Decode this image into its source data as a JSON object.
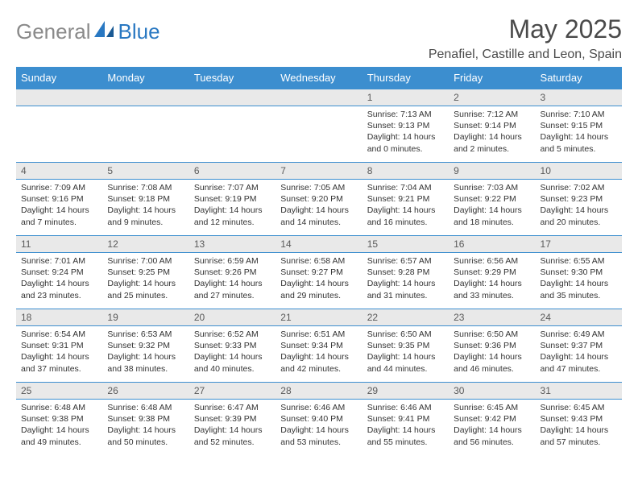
{
  "brand": {
    "part1": "General",
    "part2": "Blue"
  },
  "title": "May 2025",
  "location": "Penafiel, Castille and Leon, Spain",
  "colors": {
    "header_bg": "#3c8ecf",
    "header_text": "#ffffff",
    "daynum_bg": "#e9e9e9",
    "border": "#3c8ecf",
    "logo_gray": "#8a8a8a",
    "logo_blue": "#2978c2"
  },
  "weekdays": [
    "Sunday",
    "Monday",
    "Tuesday",
    "Wednesday",
    "Thursday",
    "Friday",
    "Saturday"
  ],
  "weeks": [
    {
      "nums": [
        "",
        "",
        "",
        "",
        "1",
        "2",
        "3"
      ],
      "cells": [
        null,
        null,
        null,
        null,
        {
          "sunrise": "Sunrise: 7:13 AM",
          "sunset": "Sunset: 9:13 PM",
          "daylight": "Daylight: 14 hours and 0 minutes."
        },
        {
          "sunrise": "Sunrise: 7:12 AM",
          "sunset": "Sunset: 9:14 PM",
          "daylight": "Daylight: 14 hours and 2 minutes."
        },
        {
          "sunrise": "Sunrise: 7:10 AM",
          "sunset": "Sunset: 9:15 PM",
          "daylight": "Daylight: 14 hours and 5 minutes."
        }
      ]
    },
    {
      "nums": [
        "4",
        "5",
        "6",
        "7",
        "8",
        "9",
        "10"
      ],
      "cells": [
        {
          "sunrise": "Sunrise: 7:09 AM",
          "sunset": "Sunset: 9:16 PM",
          "daylight": "Daylight: 14 hours and 7 minutes."
        },
        {
          "sunrise": "Sunrise: 7:08 AM",
          "sunset": "Sunset: 9:18 PM",
          "daylight": "Daylight: 14 hours and 9 minutes."
        },
        {
          "sunrise": "Sunrise: 7:07 AM",
          "sunset": "Sunset: 9:19 PM",
          "daylight": "Daylight: 14 hours and 12 minutes."
        },
        {
          "sunrise": "Sunrise: 7:05 AM",
          "sunset": "Sunset: 9:20 PM",
          "daylight": "Daylight: 14 hours and 14 minutes."
        },
        {
          "sunrise": "Sunrise: 7:04 AM",
          "sunset": "Sunset: 9:21 PM",
          "daylight": "Daylight: 14 hours and 16 minutes."
        },
        {
          "sunrise": "Sunrise: 7:03 AM",
          "sunset": "Sunset: 9:22 PM",
          "daylight": "Daylight: 14 hours and 18 minutes."
        },
        {
          "sunrise": "Sunrise: 7:02 AM",
          "sunset": "Sunset: 9:23 PM",
          "daylight": "Daylight: 14 hours and 20 minutes."
        }
      ]
    },
    {
      "nums": [
        "11",
        "12",
        "13",
        "14",
        "15",
        "16",
        "17"
      ],
      "cells": [
        {
          "sunrise": "Sunrise: 7:01 AM",
          "sunset": "Sunset: 9:24 PM",
          "daylight": "Daylight: 14 hours and 23 minutes."
        },
        {
          "sunrise": "Sunrise: 7:00 AM",
          "sunset": "Sunset: 9:25 PM",
          "daylight": "Daylight: 14 hours and 25 minutes."
        },
        {
          "sunrise": "Sunrise: 6:59 AM",
          "sunset": "Sunset: 9:26 PM",
          "daylight": "Daylight: 14 hours and 27 minutes."
        },
        {
          "sunrise": "Sunrise: 6:58 AM",
          "sunset": "Sunset: 9:27 PM",
          "daylight": "Daylight: 14 hours and 29 minutes."
        },
        {
          "sunrise": "Sunrise: 6:57 AM",
          "sunset": "Sunset: 9:28 PM",
          "daylight": "Daylight: 14 hours and 31 minutes."
        },
        {
          "sunrise": "Sunrise: 6:56 AM",
          "sunset": "Sunset: 9:29 PM",
          "daylight": "Daylight: 14 hours and 33 minutes."
        },
        {
          "sunrise": "Sunrise: 6:55 AM",
          "sunset": "Sunset: 9:30 PM",
          "daylight": "Daylight: 14 hours and 35 minutes."
        }
      ]
    },
    {
      "nums": [
        "18",
        "19",
        "20",
        "21",
        "22",
        "23",
        "24"
      ],
      "cells": [
        {
          "sunrise": "Sunrise: 6:54 AM",
          "sunset": "Sunset: 9:31 PM",
          "daylight": "Daylight: 14 hours and 37 minutes."
        },
        {
          "sunrise": "Sunrise: 6:53 AM",
          "sunset": "Sunset: 9:32 PM",
          "daylight": "Daylight: 14 hours and 38 minutes."
        },
        {
          "sunrise": "Sunrise: 6:52 AM",
          "sunset": "Sunset: 9:33 PM",
          "daylight": "Daylight: 14 hours and 40 minutes."
        },
        {
          "sunrise": "Sunrise: 6:51 AM",
          "sunset": "Sunset: 9:34 PM",
          "daylight": "Daylight: 14 hours and 42 minutes."
        },
        {
          "sunrise": "Sunrise: 6:50 AM",
          "sunset": "Sunset: 9:35 PM",
          "daylight": "Daylight: 14 hours and 44 minutes."
        },
        {
          "sunrise": "Sunrise: 6:50 AM",
          "sunset": "Sunset: 9:36 PM",
          "daylight": "Daylight: 14 hours and 46 minutes."
        },
        {
          "sunrise": "Sunrise: 6:49 AM",
          "sunset": "Sunset: 9:37 PM",
          "daylight": "Daylight: 14 hours and 47 minutes."
        }
      ]
    },
    {
      "nums": [
        "25",
        "26",
        "27",
        "28",
        "29",
        "30",
        "31"
      ],
      "cells": [
        {
          "sunrise": "Sunrise: 6:48 AM",
          "sunset": "Sunset: 9:38 PM",
          "daylight": "Daylight: 14 hours and 49 minutes."
        },
        {
          "sunrise": "Sunrise: 6:48 AM",
          "sunset": "Sunset: 9:38 PM",
          "daylight": "Daylight: 14 hours and 50 minutes."
        },
        {
          "sunrise": "Sunrise: 6:47 AM",
          "sunset": "Sunset: 9:39 PM",
          "daylight": "Daylight: 14 hours and 52 minutes."
        },
        {
          "sunrise": "Sunrise: 6:46 AM",
          "sunset": "Sunset: 9:40 PM",
          "daylight": "Daylight: 14 hours and 53 minutes."
        },
        {
          "sunrise": "Sunrise: 6:46 AM",
          "sunset": "Sunset: 9:41 PM",
          "daylight": "Daylight: 14 hours and 55 minutes."
        },
        {
          "sunrise": "Sunrise: 6:45 AM",
          "sunset": "Sunset: 9:42 PM",
          "daylight": "Daylight: 14 hours and 56 minutes."
        },
        {
          "sunrise": "Sunrise: 6:45 AM",
          "sunset": "Sunset: 9:43 PM",
          "daylight": "Daylight: 14 hours and 57 minutes."
        }
      ]
    }
  ]
}
